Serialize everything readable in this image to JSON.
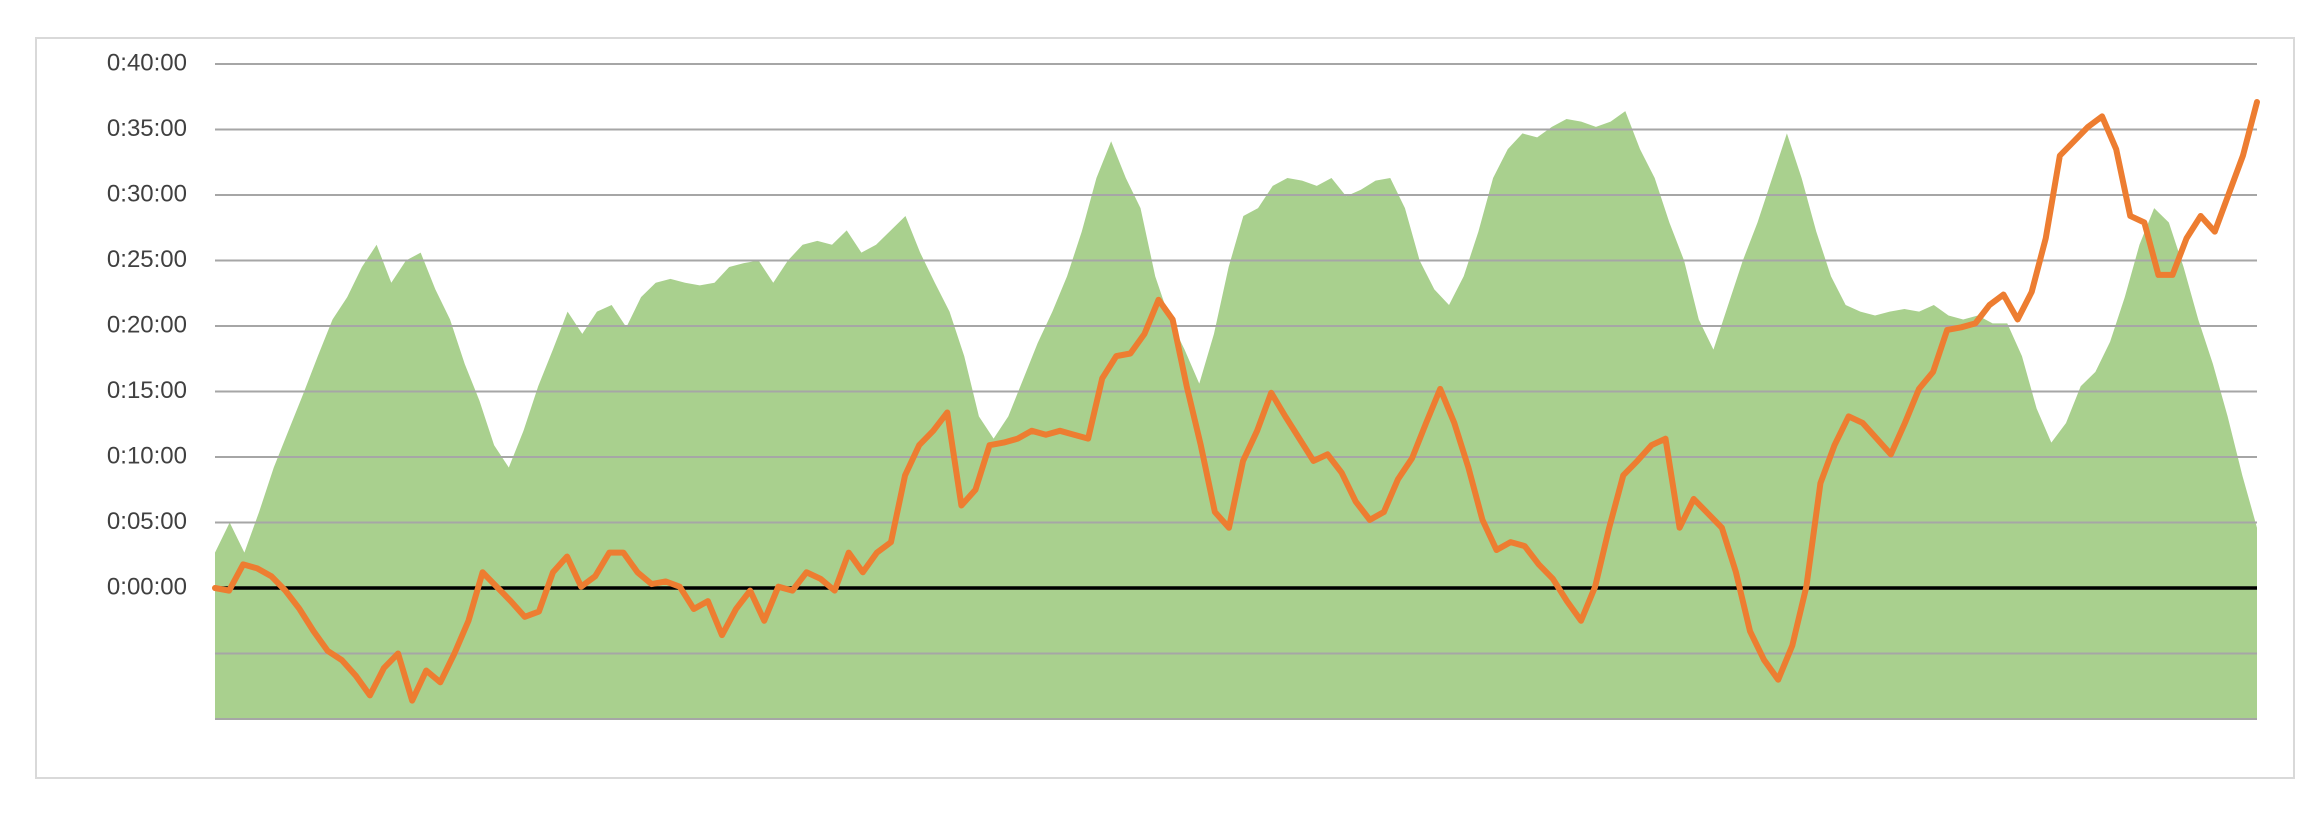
{
  "chart_data": {
    "type": "line",
    "ylim": [
      -10,
      40
    ],
    "yticks": [
      {
        "value": -10,
        "label": null
      },
      {
        "value": -5,
        "label": null
      },
      {
        "value": 0,
        "label": "0:00:00"
      },
      {
        "value": 5,
        "label": "0:05:00"
      },
      {
        "value": 10,
        "label": "0:10:00"
      },
      {
        "value": 15,
        "label": "0:15:00"
      },
      {
        "value": 20,
        "label": "0:20:00"
      },
      {
        "value": 25,
        "label": "0:25:00"
      },
      {
        "value": 30,
        "label": "0:30:00"
      },
      {
        "value": 35,
        "label": "0:35:00"
      },
      {
        "value": 40,
        "label": "0:40:00"
      }
    ],
    "grid": true,
    "grid_color": "#a6a6a6",
    "zero_line_color": "#000000",
    "series": [
      {
        "type": "area",
        "color": "#a9d08e",
        "values": [
          2.7,
          5,
          2.7,
          5.8,
          9.2,
          12,
          14.8,
          17.7,
          20.5,
          22.2,
          24.5,
          26.2,
          23.3,
          25,
          25.6,
          22.8,
          20.5,
          17.1,
          14.3,
          10.9,
          9.2,
          12,
          15.4,
          18.2,
          21.1,
          19.4,
          21.1,
          21.6,
          19.9,
          22.2,
          23.3,
          23.6,
          23.3,
          23.1,
          23.3,
          24.5,
          24.8,
          25,
          23.3,
          25,
          26.2,
          26.5,
          26.2,
          27.3,
          25.6,
          26.2,
          27.3,
          28.4,
          25.6,
          23.3,
          21.1,
          17.7,
          13.1,
          11.4,
          13.1,
          15.9,
          18.7,
          21.1,
          23.8,
          27.2,
          31.3,
          34.1,
          31.3,
          29,
          23.8,
          20.5,
          18.2,
          15.6,
          19.4,
          24.5,
          28.4,
          29,
          30.7,
          31.3,
          31.1,
          30.7,
          31.3,
          29.9,
          30.4,
          31.1,
          31.3,
          29,
          25,
          22.8,
          21.6,
          23.8,
          27.2,
          31.3,
          33.5,
          34.7,
          34.4,
          35.2,
          35.8,
          35.6,
          35.2,
          35.6,
          36.4,
          33.5,
          31.3,
          27.9,
          25,
          20.5,
          18.2,
          21.6,
          25,
          27.9,
          31.3,
          34.7,
          31.3,
          27.2,
          23.8,
          21.6,
          21.1,
          20.8,
          21.1,
          21.3,
          21.1,
          21.6,
          20.8,
          20.5,
          20.8,
          20.2,
          20.2,
          17.7,
          13.7,
          11.1,
          12.6,
          15.4,
          16.5,
          18.8,
          22.2,
          26.2,
          29,
          27.9,
          24.5,
          20.5,
          17.1,
          13.1,
          8.6,
          4.6
        ]
      },
      {
        "type": "line",
        "color": "#ed7d31",
        "values": [
          0,
          -0.2,
          1.8,
          1.5,
          0.9,
          -0.2,
          -1.6,
          -3.3,
          -4.8,
          -5.5,
          -6.7,
          -8.2,
          -6.1,
          -5,
          -8.6,
          -6.3,
          -7.2,
          -5,
          -2.5,
          1.2,
          0.1,
          -1,
          -2.2,
          -1.8,
          1.2,
          2.4,
          0.1,
          0.9,
          2.7,
          2.7,
          1.2,
          0.3,
          0.5,
          0.1,
          -1.6,
          -1,
          -3.6,
          -1.6,
          -0.2,
          -2.5,
          0.1,
          -0.2,
          1.2,
          0.7,
          -0.2,
          2.7,
          1.2,
          2.7,
          3.5,
          8.6,
          10.9,
          12,
          13.4,
          6.3,
          7.5,
          10.9,
          11.1,
          11.4,
          12,
          11.7,
          12,
          11.7,
          11.4,
          16,
          17.7,
          17.9,
          19.4,
          22,
          20.5,
          15.4,
          10.9,
          5.8,
          4.6,
          9.7,
          12,
          14.9,
          13.1,
          11.4,
          9.7,
          10.2,
          8.8,
          6.6,
          5.2,
          5.8,
          8.3,
          9.9,
          12.6,
          15.2,
          12.6,
          9.2,
          5.2,
          2.9,
          3.5,
          3.2,
          1.8,
          0.7,
          -1,
          -2.5,
          0.1,
          4.6,
          8.6,
          9.7,
          10.9,
          11.4,
          4.6,
          6.8,
          5.7,
          4.6,
          1.2,
          -3.3,
          -5.5,
          -7,
          -4.4,
          0.1,
          8,
          10.9,
          13.1,
          12.6,
          11.4,
          10.2,
          12.6,
          15.2,
          16.5,
          19.7,
          19.9,
          20.2,
          21.6,
          22.4,
          20.5,
          22.6,
          26.7,
          33,
          34.1,
          35.2,
          36,
          33.5,
          28.4,
          27.9,
          23.9,
          23.9,
          26.7,
          28.4,
          27.2,
          30.1,
          33,
          37.1
        ]
      }
    ]
  }
}
